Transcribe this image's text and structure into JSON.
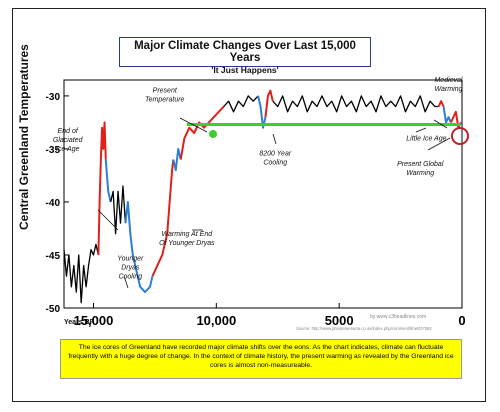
{
  "title": "Major Climate Changes Over Last 15,000 Years",
  "subtitle": "'It Just Happens'",
  "caption": "The ice cores of Greenland have recorded major climate shifts over the eons. As the chart indicates, climate can fluctuate frequently with a huge degree of change. In the context of climate history, the present warming as revealed by the Greenland ice cores is almost non-measureable.",
  "source": "Source: http://www.pbsoteraeraeta.co.uk/index.php/comment/khet/D7592",
  "watermark": "by www.c3headlines.com",
  "colors": {
    "black": "#000000",
    "red": "#e0201b",
    "blue": "#2f7fd0",
    "green": "#3ecf2f",
    "title_border": "#2b3a8c",
    "caption_bg": "#ffff00"
  },
  "chart_data": {
    "type": "line",
    "ylabel": "Central Greenland Temperatures",
    "xlabel_prefix": "Years BP",
    "xlim": [
      16200,
      0
    ],
    "ylim": [
      -50,
      -28.5
    ],
    "x_ticks": [
      {
        "value": 15000,
        "label": "15,000"
      },
      {
        "value": 10000,
        "label": "10,000"
      },
      {
        "value": 5000,
        "label": "5000"
      },
      {
        "value": 0,
        "label": "0"
      }
    ],
    "y_ticks": [
      {
        "value": -30,
        "label": "-30"
      },
      {
        "value": -35,
        "label": "-35"
      },
      {
        "value": -40,
        "label": "-40"
      },
      {
        "value": -45,
        "label": "-45"
      },
      {
        "value": -50,
        "label": "-50"
      }
    ],
    "series": [
      {
        "color": "black",
        "x": [
          16200,
          16100,
          16000,
          15900,
          15800,
          15700,
          15600,
          15500,
          15400,
          15300,
          15200,
          15100,
          15000,
          14900,
          14800
        ],
        "y": [
          -44.5,
          -47,
          -45,
          -48,
          -46,
          -48.5,
          -45,
          -49.5,
          -46,
          -48,
          -46,
          -44.5,
          -45,
          -44,
          -45
        ]
      },
      {
        "color": "red",
        "x": [
          14800,
          14750,
          14700,
          14650,
          14600,
          14550,
          14500
        ],
        "y": [
          -45,
          -40,
          -36,
          -33,
          -35,
          -32.5,
          -36
        ]
      },
      {
        "color": "blue",
        "x": [
          14500,
          14400,
          14300
        ],
        "y": [
          -36,
          -39,
          -40
        ]
      },
      {
        "color": "black",
        "x": [
          14300,
          14200,
          14100,
          14000,
          13900,
          13800,
          13700
        ],
        "y": [
          -40,
          -39,
          -43,
          -39,
          -42,
          -38.5,
          -42
        ]
      },
      {
        "color": "blue",
        "x": [
          13700,
          13600,
          13500,
          13400,
          13300,
          13200,
          13100,
          12900,
          12700,
          12600
        ],
        "y": [
          -42,
          -40,
          -43,
          -45,
          -46,
          -47,
          -48,
          -48.5,
          -48,
          -47
        ]
      },
      {
        "color": "red",
        "x": [
          12600,
          12400,
          12200,
          12000,
          11900,
          11800,
          11750
        ],
        "y": [
          -47,
          -46,
          -45,
          -43,
          -40,
          -37,
          -36
        ]
      },
      {
        "color": "blue",
        "x": [
          11750,
          11650,
          11550,
          11450
        ],
        "y": [
          -36,
          -37,
          -35,
          -36
        ]
      },
      {
        "color": "red",
        "x": [
          11450,
          11300,
          11100,
          10900,
          10700,
          10500,
          10300,
          10100,
          9900,
          9700
        ],
        "y": [
          -36,
          -34,
          -33,
          -33.5,
          -32.5,
          -33,
          -32.5,
          -32,
          -31.5,
          -31
        ]
      },
      {
        "color": "black",
        "x": [
          9700,
          9500,
          9300,
          9100,
          8900,
          8700,
          8500,
          8300
        ],
        "y": [
          -31,
          -30.5,
          -31.5,
          -30.5,
          -31,
          -30,
          -30.5,
          -30
        ]
      },
      {
        "color": "blue",
        "x": [
          8300,
          8200,
          8100,
          8000
        ],
        "y": [
          -30,
          -31,
          -33,
          -32
        ]
      },
      {
        "color": "red",
        "x": [
          8000,
          7900,
          7800,
          7700
        ],
        "y": [
          -32,
          -30,
          -29.5,
          -30.5
        ]
      },
      {
        "color": "black",
        "x": [
          7700,
          7500,
          7300,
          7100,
          6900,
          6700,
          6500,
          6300,
          6100,
          5900,
          5700,
          5500,
          5300,
          5100,
          4900,
          4700,
          4500,
          4300,
          4100,
          3900,
          3700,
          3500,
          3300,
          3100,
          2900,
          2700,
          2500,
          2300,
          2100,
          1900,
          1700,
          1500,
          1300,
          1100,
          950
        ],
        "y": [
          -30.5,
          -31,
          -30,
          -31.5,
          -30.5,
          -31,
          -30,
          -31.5,
          -30.5,
          -31,
          -30,
          -31,
          -30.5,
          -31.5,
          -30,
          -31,
          -30.5,
          -31.5,
          -30,
          -31,
          -30.5,
          -31.5,
          -30,
          -31,
          -30.5,
          -31,
          -30,
          -31.5,
          -30.5,
          -31,
          -30,
          -31.5,
          -30.5,
          -31,
          -31
        ]
      },
      {
        "color": "red",
        "x": [
          950,
          850,
          750
        ],
        "y": [
          -31,
          -30.5,
          -31
        ]
      },
      {
        "color": "blue",
        "x": [
          750,
          650,
          550,
          450
        ],
        "y": [
          -31,
          -32.5,
          -32,
          -32.5
        ]
      },
      {
        "color": "red",
        "x": [
          450,
          350,
          250,
          150,
          50
        ],
        "y": [
          -32.5,
          -32,
          -31.5,
          -33,
          -32.5
        ]
      }
    ],
    "present_line": {
      "x_start": 11200,
      "x_end": 50,
      "y": -32.7,
      "color": "green"
    },
    "annotations": [
      {
        "text": "Present\nTemperature",
        "x": 12100,
        "y": -29.7
      },
      {
        "text": "End of\nGlaciated\nIce Age",
        "x": 16050,
        "y": -33.5
      },
      {
        "text": "8200 Year\nCooling",
        "x": 7600,
        "y": -35.6
      },
      {
        "text": "Medieval\nWarming",
        "x": 550,
        "y": -28.7
      },
      {
        "text": "Little Ice Age",
        "x": 1450,
        "y": -34.2
      },
      {
        "text": "Present Global\nWarming",
        "x": 1700,
        "y": -36.6
      },
      {
        "text": "Warming At End\nOf Younger Dryas",
        "x": 11200,
        "y": -43.2
      },
      {
        "text": "Younger\nDryas\nCooling",
        "x": 13500,
        "y": -45.5
      }
    ]
  }
}
